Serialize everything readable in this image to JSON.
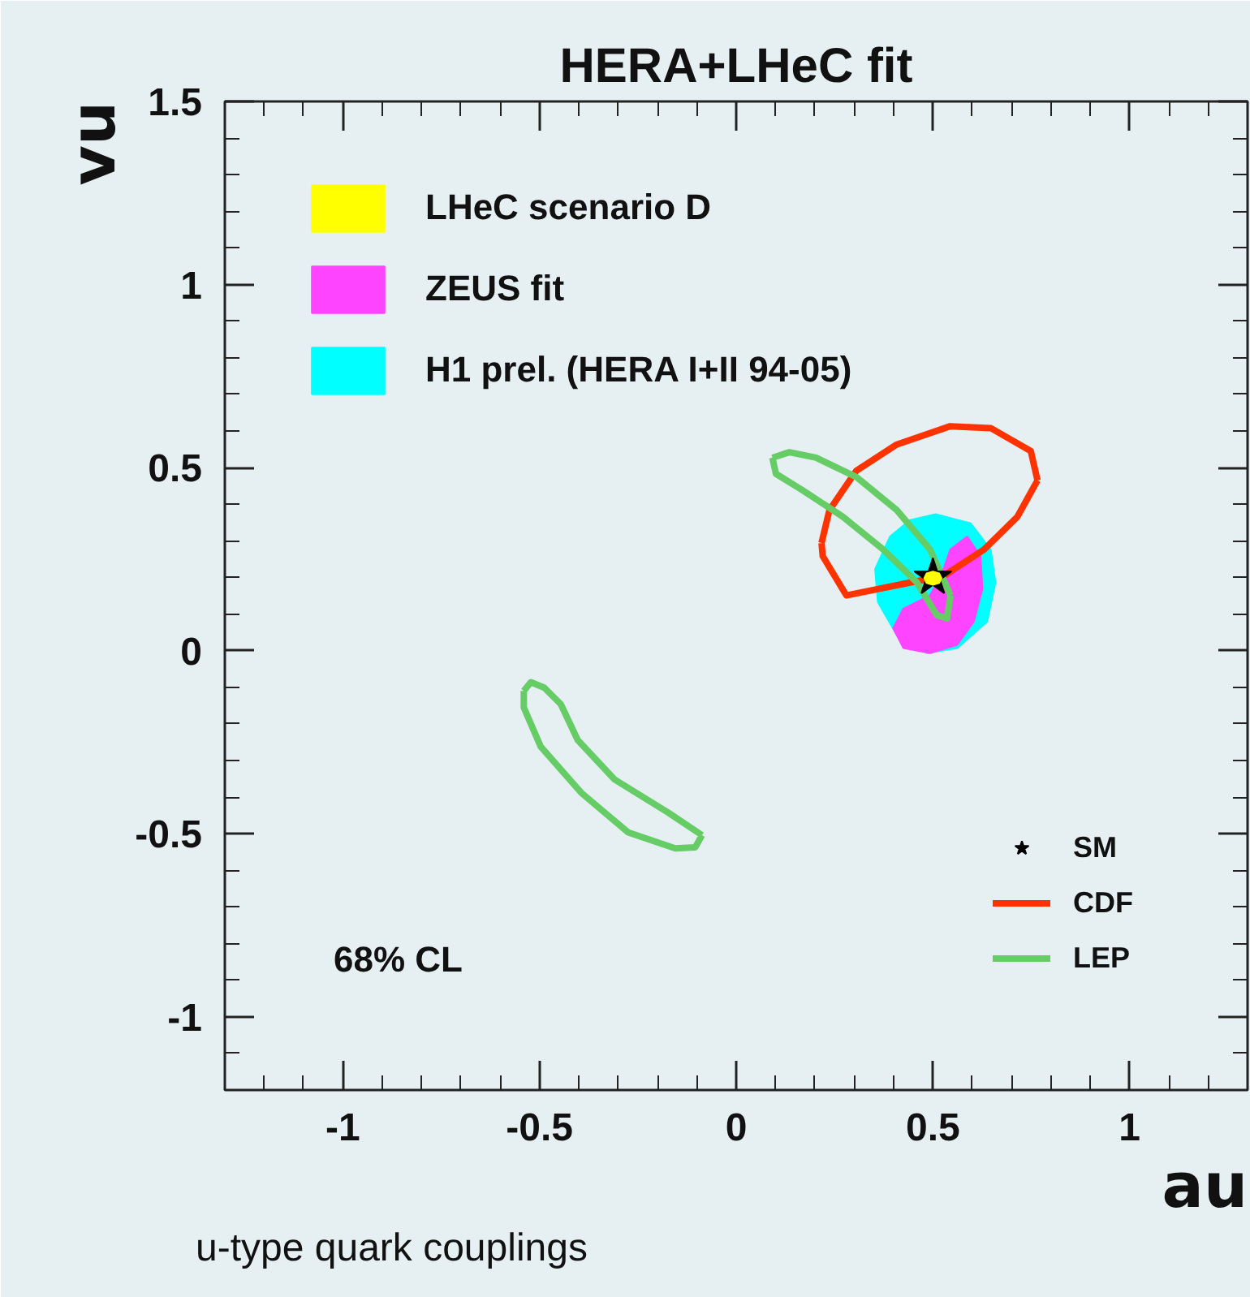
{
  "chart_data": {
    "type": "line",
    "title": "HERA+LHeC fit",
    "xlabel": "au",
    "ylabel": "vu",
    "xlim": [
      -1.3,
      1.3
    ],
    "ylim": [
      -1.2,
      1.5
    ],
    "xticks": [
      -1,
      -0.5,
      0,
      0.5,
      1
    ],
    "yticks": [
      -1,
      -0.5,
      0,
      0.5,
      1,
      1.5
    ],
    "grid": false,
    "legend": "top left",
    "annotations": [
      "68% CL",
      "u-type quark couplings"
    ],
    "series": [
      {
        "name": "H1 prel. (HERA I+II 94-05)",
        "type": "area",
        "color": "#00ffff",
        "x": [
          0.507,
          0.596,
          0.647,
          0.659,
          0.638,
          0.562,
          0.485,
          0.408,
          0.36,
          0.353,
          0.391,
          0.442
        ],
        "values": [
          0.373,
          0.348,
          0.276,
          0.186,
          0.079,
          0.007,
          -0.007,
          0.043,
          0.133,
          0.223,
          0.312,
          0.357
        ]
      },
      {
        "name": "ZEUS fit",
        "type": "area",
        "color": "#ff44ff",
        "x": [
          0.587,
          0.621,
          0.626,
          0.604,
          0.562,
          0.493,
          0.425,
          0.399,
          0.425,
          0.493,
          0.527,
          0.544
        ],
        "values": [
          0.312,
          0.258,
          0.169,
          0.079,
          0.016,
          -0.007,
          0.007,
          0.061,
          0.115,
          0.151,
          0.223,
          0.276
        ]
      },
      {
        "name": "CDF",
        "color": "#ff3300",
        "x": [
          0.217,
          0.22,
          0.28,
          0.442,
          0.527,
          0.63,
          0.715,
          0.766,
          null,
          0.766,
          0.749,
          0.647,
          0.544,
          0.408,
          0.305,
          0.237,
          0.217
        ],
        "values": [
          0.294,
          0.258,
          0.151,
          0.186,
          0.204,
          0.276,
          0.366,
          0.465,
          null,
          0.465,
          0.545,
          0.608,
          0.613,
          0.563,
          0.491,
          0.384,
          0.294
        ]
      },
      {
        "name": "LEP",
        "color": "#66cc66",
        "x": [
          0.092,
          0.135,
          0.203,
          0.306,
          0.408,
          0.493,
          0.545,
          null,
          0.545,
          0.536,
          0.51,
          0.459,
          0.374,
          0.271,
          0.169,
          0.101,
          0.092,
          null,
          -0.54,
          -0.522,
          -0.488,
          -0.446,
          -0.403,
          -0.309,
          -0.173,
          -0.087,
          null,
          -0.087,
          -0.104,
          -0.155,
          -0.275,
          -0.394,
          -0.497,
          -0.54,
          -0.54
        ],
        "values": [
          0.527,
          0.542,
          0.527,
          0.474,
          0.384,
          0.276,
          0.151,
          null,
          0.151,
          0.088,
          0.097,
          0.187,
          0.276,
          0.366,
          0.438,
          0.483,
          0.527,
          null,
          -0.11,
          -0.086,
          -0.101,
          -0.146,
          -0.244,
          -0.352,
          -0.442,
          -0.504,
          null,
          -0.504,
          -0.537,
          -0.54,
          -0.496,
          -0.388,
          -0.262,
          -0.155,
          -0.11
        ]
      },
      {
        "name": "SM",
        "type": "scatter",
        "marker": "star",
        "color": "#000000",
        "x": [
          0.5
        ],
        "values": [
          0.2
        ]
      },
      {
        "name": "LHeC scenario D",
        "type": "area",
        "color": "#ffff00",
        "x": [
          0.5,
          0.516,
          0.522,
          0.516,
          0.5,
          0.484,
          0.478,
          0.484
        ],
        "values": [
          0.216,
          0.211,
          0.198,
          0.185,
          0.18,
          0.185,
          0.198,
          0.211
        ]
      }
    ]
  }
}
